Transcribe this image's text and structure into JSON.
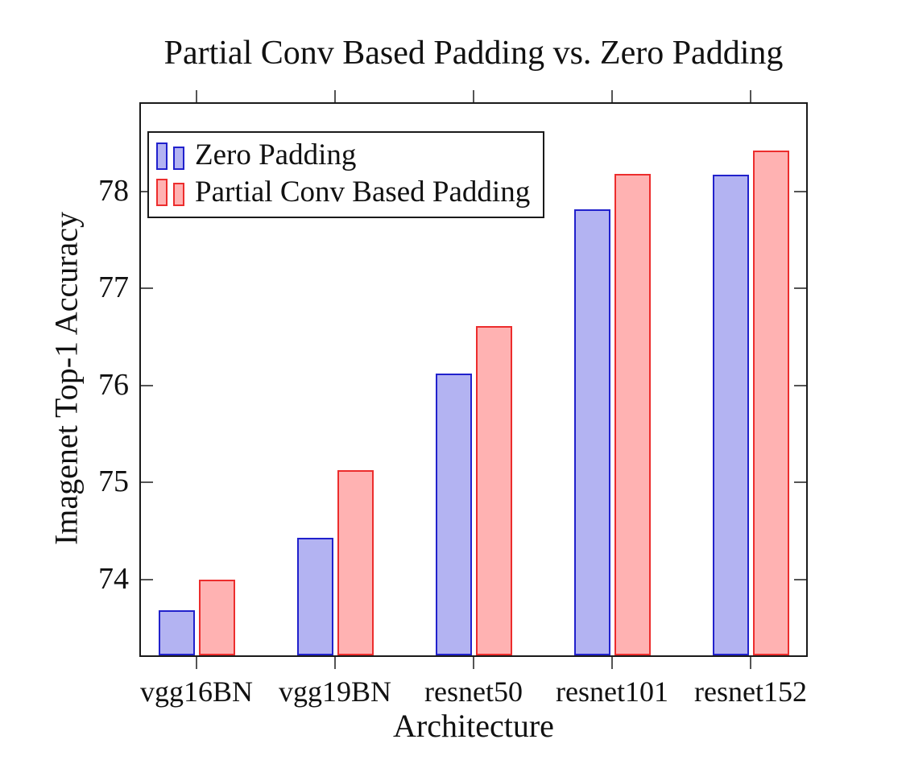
{
  "title": "Partial Conv Based Padding vs. Zero Padding",
  "colors": {
    "zero_fill": "#b3b3f2",
    "zero_border": "#2121cc",
    "partial_fill": "#ffb2b2",
    "partial_border": "#ec2d2d",
    "axis": "#1a1a1a",
    "tick": "#555555",
    "text": "#111111",
    "background": "#ffffff"
  },
  "chart_data": {
    "type": "bar",
    "title": "Partial Conv Based Padding vs. Zero Padding",
    "xlabel": "Architecture",
    "ylabel": "Imagenet Top-1 Accuracy",
    "categories": [
      "vgg16BN",
      "vgg19BN",
      "resnet50",
      "resnet101",
      "resnet152"
    ],
    "series": [
      {
        "name": "Zero Padding",
        "values": [
          73.68,
          74.43,
          76.12,
          77.82,
          78.17
        ],
        "fill": "#b3b3f2",
        "border": "#2121cc"
      },
      {
        "name": "Partial Conv Based Padding",
        "values": [
          74.0,
          75.13,
          76.61,
          78.18,
          78.42
        ],
        "fill": "#ffb2b2",
        "border": "#ec2d2d"
      }
    ],
    "yticks": [
      74,
      75,
      76,
      77,
      78
    ],
    "ylim": [
      73.2,
      78.92
    ],
    "grid": false,
    "legend_position": "top-left"
  }
}
